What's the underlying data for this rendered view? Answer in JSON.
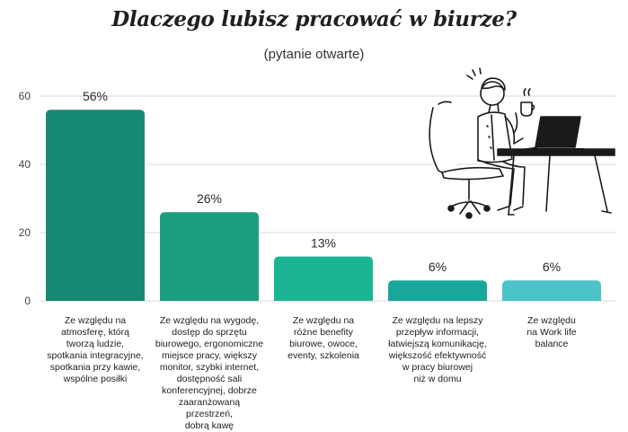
{
  "title": "Dlaczego lubisz pracować w biurze?",
  "subtitle": "(pytanie otwarte)",
  "chart_data": {
    "type": "bar",
    "categories": [
      "Ze względu na atmosferę, którą tworzą ludzie, spotkania integracyjne, spotkania przy kawie, wspólne posiłki",
      "Ze względu na wygodę, dostęp do sprzętu biurowego, ergonomiczne miejsce pracy, większy monitor, szybki internet, dostępność sali konferencyjnej, dobrze zaaranżowaną przestrzeń, dobrą kawę",
      "Ze względu na różne benefity biurowe, owoce, eventy, szkolenia",
      "Ze względu na lepszy przepływ informacji, łatwiejszą komunikację, większość efektywność w pracy biurowej niż w domu",
      "Ze względu na Work life balance"
    ],
    "category_lines": [
      [
        "Ze względu na",
        "atmosferę, którą",
        "tworzą ludzie,",
        "spotkania integracyjne,",
        "spotkania przy kawie,",
        "wspólne posiłki"
      ],
      [
        "Ze względu na wygodę,",
        "dostęp do sprzętu",
        "biurowego, ergonomiczne",
        "miejsce pracy, większy",
        "monitor, szybki internet,",
        "dostępność sali",
        "konferencyjnej, dobrze",
        "zaaranżowaną przestrzeń,",
        "dobrą kawę"
      ],
      [
        "Ze względu na",
        "różne benefity",
        "biurowe, owoce,",
        "eventy, szkolenia"
      ],
      [
        "Ze względu na lepszy",
        "przepływ informacji,",
        "łatwiejszą komunikację,",
        "większość efektywność",
        "w pracy biurowej",
        "niż w domu"
      ],
      [
        "Ze względu",
        "na Work life",
        "balance"
      ]
    ],
    "values": [
      56,
      26,
      13,
      6,
      6
    ],
    "value_labels": [
      "56%",
      "26%",
      "13%",
      "6%",
      "6%"
    ],
    "colors": [
      "#168a72",
      "#1d9d80",
      "#1ab693",
      "#1aa79b",
      "#4cc3c8"
    ],
    "yticks": [
      0,
      20,
      40,
      60
    ],
    "ylim": [
      0,
      60
    ],
    "grid": true,
    "xlabel": "",
    "ylabel": ""
  },
  "illustration": {
    "icon": "person-at-desk-with-laptop-and-coffee-icon"
  }
}
